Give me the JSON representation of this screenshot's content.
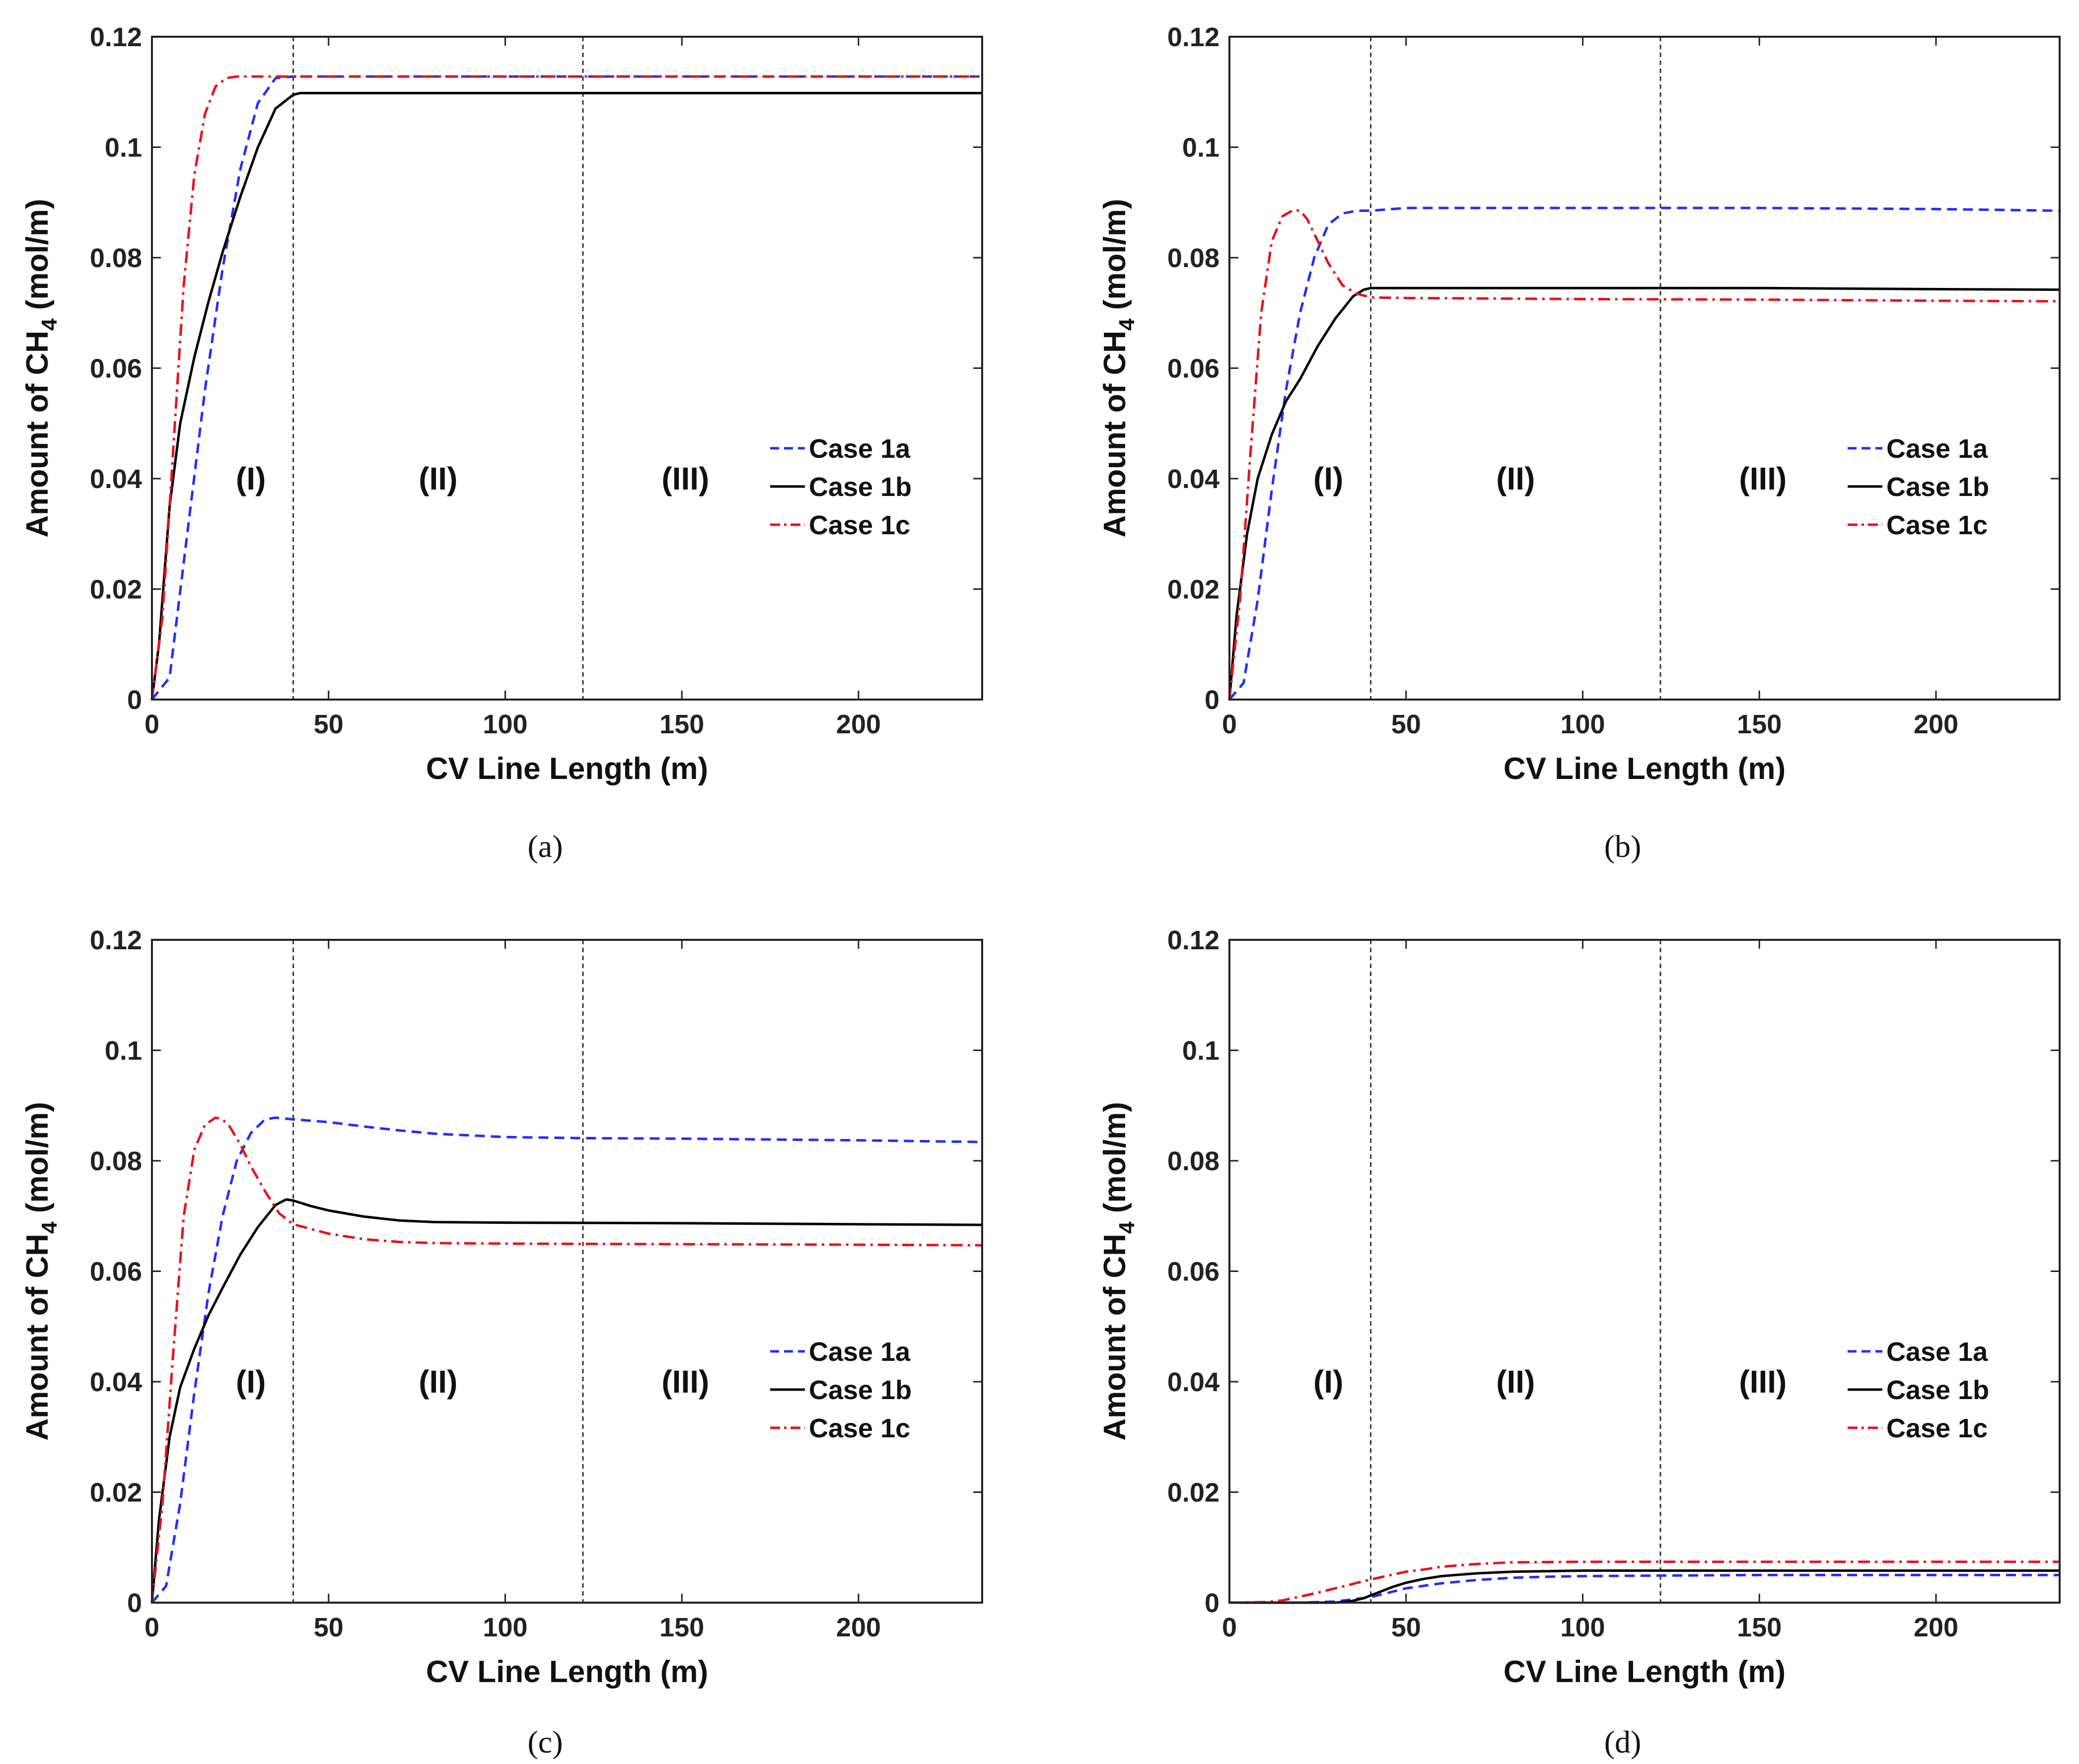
{
  "chart_data": [
    {
      "panel": "(a)",
      "type": "line",
      "xlabel": "CV Line Length (m)",
      "ylabel": "Amount of CH4 (mol/m)",
      "xlim": [
        0,
        235
      ],
      "ylim": [
        0,
        0.12
      ],
      "xticks": [
        0,
        50,
        100,
        150,
        200
      ],
      "yticks": [
        0,
        0.02,
        0.04,
        0.06,
        0.08,
        0.1,
        0.12
      ],
      "ytick_labels": [
        "0",
        "0.02",
        "0.04",
        "0.06",
        "0.08",
        "0.1",
        "0.12"
      ],
      "boundaries": [
        40,
        122
      ],
      "regions": [
        {
          "label": "(I)",
          "x": 28
        },
        {
          "label": "(II)",
          "x": 81
        },
        {
          "label": "(III)",
          "x": 151
        }
      ],
      "legend": {
        "placement": "right-center",
        "entries": [
          "Case 1a",
          "Case 1b",
          "Case 1c"
        ]
      },
      "series": [
        {
          "name": "Case 1a",
          "color": "#1f2fff",
          "dash": "dash",
          "x": [
            0,
            5,
            10,
            15,
            20,
            25,
            30,
            35,
            40,
            45,
            50,
            100,
            150,
            200,
            235
          ],
          "y": [
            0,
            0.004,
            0.03,
            0.056,
            0.078,
            0.096,
            0.108,
            0.1125,
            0.1128,
            0.1128,
            0.1128,
            0.1128,
            0.1128,
            0.1128,
            0.1128
          ]
        },
        {
          "name": "Case 1b",
          "color": "#000000",
          "dash": "solid",
          "x": [
            0,
            2,
            5,
            8,
            12,
            16,
            20,
            25,
            30,
            35,
            40,
            42,
            45,
            50,
            100,
            150,
            200,
            235
          ],
          "y": [
            0,
            0.01,
            0.035,
            0.05,
            0.062,
            0.072,
            0.081,
            0.091,
            0.1,
            0.107,
            0.1095,
            0.1098,
            0.1098,
            0.1098,
            0.1098,
            0.1098,
            0.1098,
            0.1098
          ]
        },
        {
          "name": "Case 1c",
          "color": "#e8121c",
          "dash": "dashdot",
          "x": [
            0,
            3,
            6,
            9,
            12,
            15,
            18,
            21,
            24,
            27,
            30,
            50,
            100,
            150,
            200,
            235
          ],
          "y": [
            0,
            0.015,
            0.045,
            0.075,
            0.095,
            0.106,
            0.111,
            0.1125,
            0.1128,
            0.1128,
            0.1128,
            0.1128,
            0.1128,
            0.1128,
            0.1128,
            0.1128
          ]
        }
      ]
    },
    {
      "panel": "(b)",
      "type": "line",
      "xlabel": "CV Line Length (m)",
      "ylabel": "Amount of CH4 (mol/m)",
      "xlim": [
        0,
        235
      ],
      "ylim": [
        0,
        0.12
      ],
      "xticks": [
        0,
        50,
        100,
        150,
        200
      ],
      "yticks": [
        0,
        0.02,
        0.04,
        0.06,
        0.08,
        0.1,
        0.12
      ],
      "ytick_labels": [
        "0",
        "0.02",
        "0.04",
        "0.06",
        "0.08",
        "0.1",
        "0.12"
      ],
      "boundaries": [
        40,
        122
      ],
      "regions": [
        {
          "label": "(I)",
          "x": 28
        },
        {
          "label": "(II)",
          "x": 81
        },
        {
          "label": "(III)",
          "x": 151
        }
      ],
      "legend": {
        "placement": "right-center",
        "entries": [
          "Case 1a",
          "Case 1b",
          "Case 1c"
        ]
      },
      "series": [
        {
          "name": "Case 1a",
          "color": "#1f2fff",
          "dash": "dash",
          "x": [
            0,
            4,
            8,
            12,
            16,
            20,
            24,
            28,
            32,
            36,
            40,
            50,
            100,
            150,
            200,
            235
          ],
          "y": [
            0,
            0.003,
            0.018,
            0.038,
            0.056,
            0.07,
            0.08,
            0.086,
            0.088,
            0.0885,
            0.0885,
            0.089,
            0.089,
            0.089,
            0.0888,
            0.0885
          ]
        },
        {
          "name": "Case 1b",
          "color": "#000000",
          "dash": "solid",
          "x": [
            0,
            2,
            5,
            8,
            12,
            16,
            20,
            25,
            30,
            35,
            38,
            40,
            45,
            50,
            100,
            150,
            200,
            235
          ],
          "y": [
            0,
            0.015,
            0.03,
            0.04,
            0.048,
            0.054,
            0.058,
            0.064,
            0.069,
            0.073,
            0.0742,
            0.0745,
            0.0745,
            0.0745,
            0.0745,
            0.0745,
            0.0743,
            0.0742
          ]
        },
        {
          "name": "Case 1c",
          "color": "#e8121c",
          "dash": "dashdot",
          "x": [
            0,
            3,
            6,
            9,
            12,
            15,
            18,
            20,
            22,
            25,
            28,
            32,
            36,
            40,
            50,
            100,
            150,
            200,
            235
          ],
          "y": [
            0,
            0.018,
            0.045,
            0.07,
            0.083,
            0.0875,
            0.0886,
            0.0885,
            0.087,
            0.083,
            0.079,
            0.075,
            0.0735,
            0.0728,
            0.0727,
            0.0725,
            0.0724,
            0.0722,
            0.0721
          ]
        }
      ]
    },
    {
      "panel": "(c)",
      "type": "line",
      "xlabel": "CV Line Length (m)",
      "ylabel": "Amount of CH4 (mol/m)",
      "xlim": [
        0,
        235
      ],
      "ylim": [
        0,
        0.12
      ],
      "xticks": [
        0,
        50,
        100,
        150,
        200
      ],
      "yticks": [
        0,
        0.02,
        0.04,
        0.06,
        0.08,
        0.1,
        0.12
      ],
      "ytick_labels": [
        "0",
        "0.02",
        "0.04",
        "0.06",
        "0.08",
        "0.1",
        "0.12"
      ],
      "boundaries": [
        40,
        122
      ],
      "regions": [
        {
          "label": "(I)",
          "x": 28
        },
        {
          "label": "(II)",
          "x": 81
        },
        {
          "label": "(III)",
          "x": 151
        }
      ],
      "legend": {
        "placement": "right-center",
        "entries": [
          "Case 1a",
          "Case 1b",
          "Case 1c"
        ]
      },
      "series": [
        {
          "name": "Case 1a",
          "color": "#1f2fff",
          "dash": "dash",
          "x": [
            0,
            4,
            8,
            12,
            16,
            20,
            24,
            28,
            32,
            35,
            40,
            50,
            60,
            70,
            80,
            100,
            122,
            150,
            200,
            235
          ],
          "y": [
            0,
            0.003,
            0.018,
            0.038,
            0.056,
            0.07,
            0.08,
            0.085,
            0.0875,
            0.0878,
            0.0875,
            0.087,
            0.0862,
            0.0855,
            0.0849,
            0.0843,
            0.0841,
            0.084,
            0.0837,
            0.0834
          ]
        },
        {
          "name": "Case 1b",
          "color": "#000000",
          "dash": "solid",
          "x": [
            0,
            2,
            5,
            8,
            12,
            16,
            20,
            25,
            30,
            35,
            38,
            40,
            45,
            50,
            60,
            70,
            80,
            100,
            150,
            200,
            235
          ],
          "y": [
            0,
            0.015,
            0.03,
            0.039,
            0.046,
            0.052,
            0.057,
            0.063,
            0.068,
            0.072,
            0.073,
            0.0728,
            0.0718,
            0.071,
            0.0699,
            0.0692,
            0.0689,
            0.0688,
            0.0687,
            0.0685,
            0.0684
          ]
        },
        {
          "name": "Case 1c",
          "color": "#e8121c",
          "dash": "dashdot",
          "x": [
            0,
            3,
            6,
            9,
            12,
            15,
            18,
            20,
            22,
            25,
            28,
            32,
            36,
            40,
            50,
            60,
            70,
            80,
            100,
            150,
            200,
            235
          ],
          "y": [
            0,
            0.018,
            0.045,
            0.07,
            0.082,
            0.0865,
            0.0878,
            0.0875,
            0.0862,
            0.083,
            0.079,
            0.0745,
            0.0705,
            0.0685,
            0.0668,
            0.0658,
            0.0653,
            0.0651,
            0.065,
            0.0649,
            0.0648,
            0.0647
          ]
        }
      ]
    },
    {
      "panel": "(d)",
      "type": "line",
      "xlabel": "CV Line Length (m)",
      "ylabel": "Amount of CH4 (mol/m)",
      "xlim": [
        0,
        235
      ],
      "ylim": [
        0,
        0.12
      ],
      "xticks": [
        0,
        50,
        100,
        150,
        200
      ],
      "yticks": [
        0,
        0.02,
        0.04,
        0.06,
        0.08,
        0.1,
        0.12
      ],
      "ytick_labels": [
        "0",
        "0.02",
        "0.04",
        "0.06",
        "0.08",
        "0.1",
        "0.12"
      ],
      "boundaries": [
        40,
        122
      ],
      "regions": [
        {
          "label": "(I)",
          "x": 28
        },
        {
          "label": "(II)",
          "x": 81
        },
        {
          "label": "(III)",
          "x": 151
        }
      ],
      "legend": {
        "placement": "right-center",
        "entries": [
          "Case 1a",
          "Case 1b",
          "Case 1c"
        ]
      },
      "series": [
        {
          "name": "Case 1a",
          "color": "#1f2fff",
          "dash": "dash",
          "x": [
            0,
            20,
            30,
            40,
            45,
            50,
            60,
            70,
            80,
            90,
            100,
            122,
            150,
            200,
            235
          ],
          "y": [
            0,
            0,
            0.0002,
            0.001,
            0.0018,
            0.0026,
            0.0035,
            0.0041,
            0.0045,
            0.0047,
            0.0048,
            0.0049,
            0.005,
            0.005,
            0.005
          ]
        },
        {
          "name": "Case 1b",
          "color": "#000000",
          "dash": "solid",
          "x": [
            0,
            30,
            34,
            38,
            42,
            46,
            50,
            55,
            60,
            70,
            80,
            90,
            100,
            122,
            150,
            200,
            235
          ],
          "y": [
            0,
            0,
            0.0002,
            0.0008,
            0.0018,
            0.0028,
            0.0036,
            0.0043,
            0.0048,
            0.0053,
            0.0056,
            0.0057,
            0.0058,
            0.0058,
            0.0058,
            0.0058,
            0.0058
          ]
        },
        {
          "name": "Case 1c",
          "color": "#e8121c",
          "dash": "dashdot",
          "x": [
            0,
            10,
            15,
            20,
            25,
            30,
            35,
            40,
            45,
            50,
            55,
            60,
            70,
            80,
            100,
            122,
            150,
            200,
            235
          ],
          "y": [
            0,
            0.0001,
            0.0004,
            0.0011,
            0.0018,
            0.0026,
            0.0034,
            0.0042,
            0.0049,
            0.0056,
            0.006,
            0.0065,
            0.007,
            0.0073,
            0.0074,
            0.0074,
            0.0074,
            0.0074,
            0.0074
          ]
        }
      ]
    }
  ],
  "panels": [
    {
      "caption": "(a)",
      "xlabel": "CV Line Length (m)",
      "ylabel_prefix": "Amount of CH",
      "ylabel_sub": "4",
      "ylabel_suffix": " (mol/m)"
    },
    {
      "caption": "(b)",
      "xlabel": "CV Line Length (m)",
      "ylabel_prefix": "Amount of CH",
      "ylabel_sub": "4",
      "ylabel_suffix": " (mol/m)"
    },
    {
      "caption": "(c)",
      "xlabel": "CV Line Length (m)",
      "ylabel_prefix": "Amount of CH",
      "ylabel_sub": "4",
      "ylabel_suffix": " (mol/m)"
    },
    {
      "caption": "(d)",
      "xlabel": "CV Line Length (m)",
      "ylabel_prefix": "Amount of CH",
      "ylabel_sub": "4",
      "ylabel_suffix": " (mol/m)"
    }
  ]
}
